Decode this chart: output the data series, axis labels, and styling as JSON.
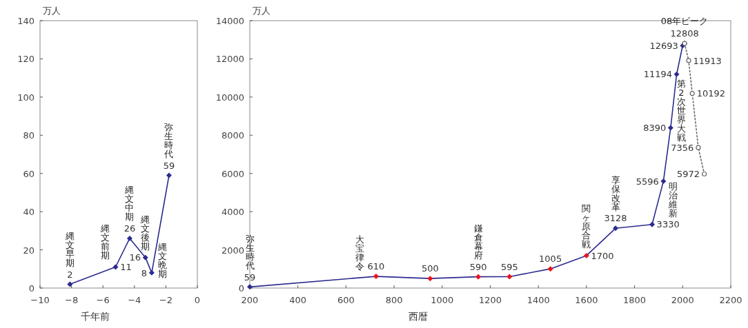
{
  "chart_data": [
    {
      "type": "line",
      "xlabel": "千年前",
      "ylabel": "万人",
      "x": [
        -8.1,
        -5.2,
        -4.3,
        -3.3,
        -2.9,
        -1.8
      ],
      "series": [
        {
          "color": "#2b2b8f",
          "values": [
            2,
            11,
            26,
            16,
            8,
            59
          ],
          "value_labels": [
            "2",
            "11",
            "26",
            "16",
            "8",
            "59"
          ]
        }
      ],
      "xlim": [
        -10,
        0
      ],
      "xticks": [
        -10,
        -8,
        -6,
        -4,
        -2,
        0
      ],
      "ylim": [
        0,
        140
      ],
      "yticks": [
        0,
        20,
        40,
        60,
        80,
        100,
        120,
        140
      ],
      "marker": "diamond",
      "annotations": [
        {
          "text": "縄文早期",
          "x": -8.1,
          "y": 2
        },
        {
          "text": "縄文前期",
          "x": -5.2,
          "y": 11
        },
        {
          "text": "縄文中期",
          "x": -4.3,
          "y": 26
        },
        {
          "text": "縄文後期",
          "x": -3.3,
          "y": 16
        },
        {
          "text": "縄文晩期",
          "x": -2.9,
          "y": 8
        },
        {
          "text": "弥生時代",
          "x": -1.8,
          "y": 59
        }
      ]
    },
    {
      "type": "line",
      "xlabel": "西暦",
      "ylabel": "万人",
      "x": [
        200,
        725,
        950,
        1150,
        1280,
        1450,
        1600,
        1721,
        1873,
        1920,
        1950,
        1975,
        2000,
        2008
      ],
      "series": [
        {
          "color": "#2b2b8f",
          "marker": "diamond",
          "values": [
            59,
            610,
            500,
            590,
            595,
            1005,
            1700,
            3128,
            3330,
            5596,
            8390,
            11194,
            12693,
            12808
          ],
          "colors": [
            "#2b2b8f",
            "#e8141b",
            "#e8141b",
            "#e8141b",
            "#e8141b",
            "#e8141b",
            "#e8141b",
            "#2b2b8f",
            "#2b2b8f",
            "#2b2b8f",
            "#2b2b8f",
            "#2b2b8f",
            "#2b2b8f",
            "#2b2b8f"
          ],
          "value_labels": [
            "59",
            "610",
            "500",
            "590",
            "595",
            "1005",
            "1700",
            "3128",
            "3330",
            "5596",
            "8390",
            "11194",
            "12693",
            "12808"
          ]
        },
        {
          "color": "#666666",
          "marker": "circle",
          "line_style": "dotted",
          "x": [
            2008,
            2025,
            2040,
            2065,
            2090
          ],
          "values": [
            12808,
            11913,
            10192,
            7356,
            5972
          ],
          "value_labels": [
            null,
            "11913",
            "10192",
            "7356",
            "5972"
          ]
        }
      ],
      "xlim": [
        200,
        2200
      ],
      "xticks": [
        200,
        400,
        600,
        800,
        1000,
        1200,
        1400,
        1600,
        1800,
        2000,
        2200
      ],
      "ylim": [
        0,
        14000
      ],
      "yticks": [
        0,
        2000,
        4000,
        6000,
        8000,
        10000,
        12000,
        14000
      ],
      "annotations": [
        {
          "text": "弥生時代",
          "x": 200,
          "y": 59
        },
        {
          "text": "大宝律令",
          "x": 701,
          "y": 560
        },
        {
          "text": "鎌倉幕府",
          "x": 1150,
          "y": 590
        },
        {
          "text": "関ヶ原合戦",
          "x": 1600,
          "y": 1700
        },
        {
          "text": "享保改革",
          "x": 1721,
          "y": 3128
        },
        {
          "text": "第2次世界大戦",
          "x": 1950,
          "y": 8390
        },
        {
          "text": "明治維新",
          "x": 1873,
          "y": 3330
        },
        {
          "text": "08年ピーク",
          "x": 2008,
          "y": 12808
        }
      ]
    }
  ]
}
